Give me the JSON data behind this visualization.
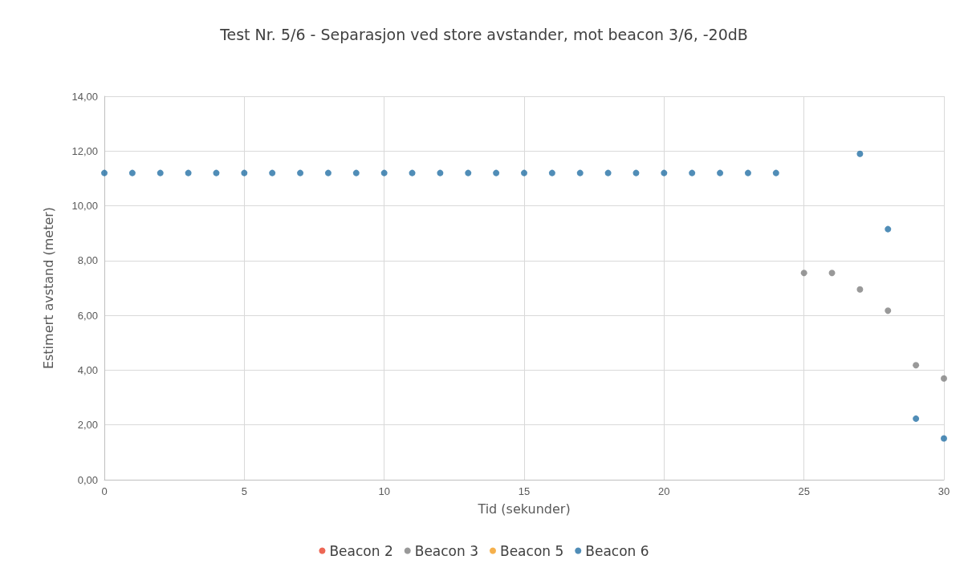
{
  "chart_data": {
    "type": "scatter",
    "title": "Test Nr. 5/6 - Separasjon ved store avstander, mot beacon 3/6, -20dB",
    "xlabel": "Tid (sekunder)",
    "ylabel": "Estimert avstand (meter)",
    "xlim": [
      0,
      30
    ],
    "xticks": [
      0,
      5,
      10,
      15,
      20,
      25,
      30
    ],
    "ylim": [
      0,
      14
    ],
    "yticks": [
      {
        "value": 0,
        "label": "0,00"
      },
      {
        "value": 2,
        "label": "2,00"
      },
      {
        "value": 4,
        "label": "4,00"
      },
      {
        "value": 6,
        "label": "6,00"
      },
      {
        "value": 8,
        "label": "8,00"
      },
      {
        "value": 10,
        "label": "10,00"
      },
      {
        "value": 12,
        "label": "12,00"
      },
      {
        "value": 14,
        "label": "14,00"
      }
    ],
    "grid": true,
    "legend": "bottom",
    "marker": "circle",
    "series": [
      {
        "name": "Beacon 2",
        "color": "#e8412b"
      },
      {
        "name": "Beacon 3",
        "color": "#7f7f7f",
        "x": [
          25,
          26,
          27,
          28,
          29,
          30
        ],
        "values": [
          7.55,
          7.55,
          6.95,
          6.17,
          4.18,
          3.7
        ]
      },
      {
        "name": "Beacon 5",
        "color": "#f39c1f"
      },
      {
        "name": "Beacon 6",
        "color": "#2470a5",
        "x": [
          0,
          1,
          2,
          3,
          4,
          5,
          6,
          7,
          8,
          9,
          10,
          11,
          12,
          13,
          14,
          15,
          16,
          17,
          18,
          19,
          20,
          21,
          22,
          23,
          24,
          27,
          28,
          29,
          30
        ],
        "values": [
          11.2,
          11.2,
          11.2,
          11.2,
          11.2,
          11.2,
          11.2,
          11.2,
          11.2,
          11.2,
          11.2,
          11.2,
          11.2,
          11.2,
          11.2,
          11.2,
          11.2,
          11.2,
          11.2,
          11.2,
          11.2,
          11.2,
          11.2,
          11.2,
          11.2,
          11.9,
          9.15,
          2.23,
          1.51
        ]
      }
    ]
  }
}
